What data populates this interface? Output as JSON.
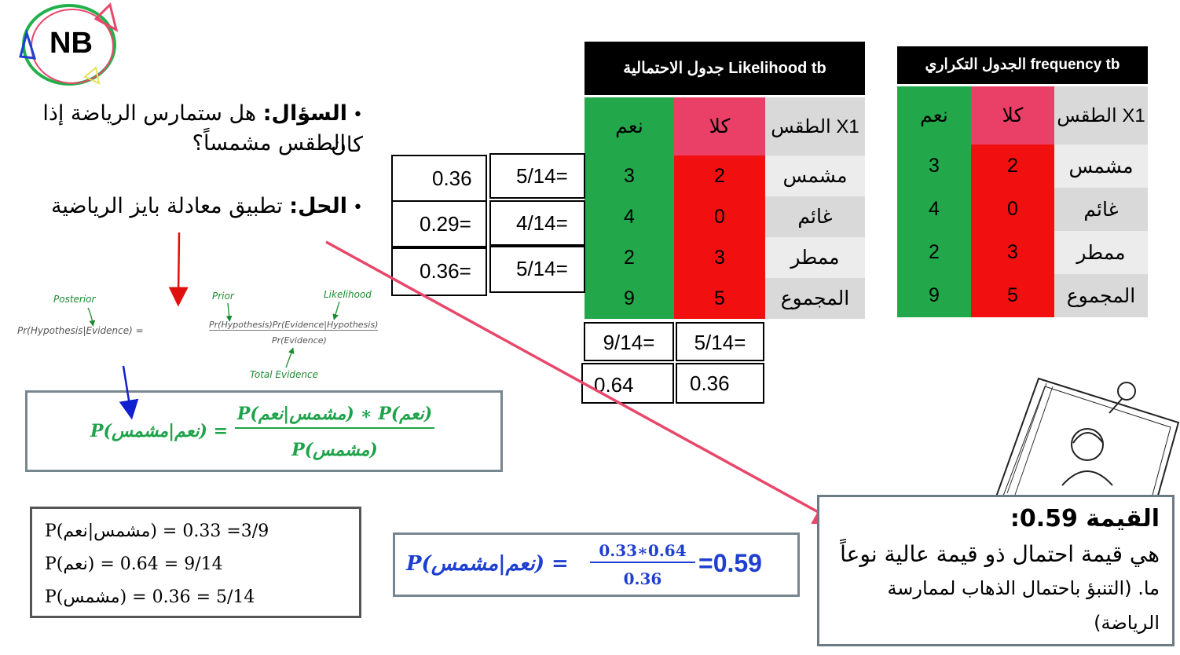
{
  "logo": {
    "text": "NB"
  },
  "question": {
    "label": "السؤال:",
    "text": " هل ستمارس الرياضة إذا كان",
    "line2": "الطقس مشمساً؟"
  },
  "solution": {
    "label": "الحل:",
    "text": " تطبيق معادلة بايز الرياضية"
  },
  "bayes_formula": {
    "posterior": "Posterior",
    "prior": "Prior",
    "likelihood": "Likelihood",
    "total": "Total Evidence",
    "lhs": "Pr(Hypothesis|Evidence) =",
    "num": "Pr(Hypothesis)Pr(Evidence|Hypothesis)",
    "den": "Pr(Evidence)"
  },
  "green_formula": {
    "lhs": "P(نعم|مشمس) =",
    "num": "P(مشمس|نعم) ∗ P(نعم)",
    "den": "P(مشمس)"
  },
  "values_box": {
    "line1": "P(مشمس|نعم) = 3/9= 0.33",
    "line2": "P(نعم) = 9/14 = 0.64",
    "line3": "P(مشمس) = 5/14 = 0.36"
  },
  "result_formula": {
    "lhs": "P(نعم|مشمس) =",
    "num": "0.33∗0.64",
    "den": "0.36",
    "result": "=0.59"
  },
  "note": {
    "title": "القيمة 0.59:",
    "line1": "هي قيمة احتمال ذو قيمة عالية نوعاً",
    "line2": "ما. (التنبؤ باحتمال الذهاب لممارسة",
    "line3": "الرياضة)"
  },
  "likelihood_table": {
    "title": "جدول الاحتمالية  Likelihood  tb",
    "headers": {
      "weather": "الطقس X1",
      "no": "كلا",
      "yes": "نعم"
    },
    "rows": [
      {
        "label": "مشمس",
        "no": "2",
        "yes": "3"
      },
      {
        "label": "غائم",
        "no": "0",
        "yes": "4"
      },
      {
        "label": "ممطر",
        "no": "3",
        "yes": "2"
      },
      {
        "label": "المجموع",
        "no": "5",
        "yes": "9"
      }
    ],
    "bottom_fracs": {
      "yes": "9/14=",
      "no": "5/14="
    },
    "bottom_vals": {
      "yes": "0.64",
      "no": "0.36"
    }
  },
  "side_fracs": [
    "5/14=",
    "4/14=",
    "5/14="
  ],
  "side_vals": [
    "0.36",
    "0.29=",
    "0.36="
  ],
  "frequency_table": {
    "title": "الجدول التكراري frequency tb",
    "headers": {
      "weather": "الطقس X1",
      "no": "كلا",
      "yes": "نعم"
    },
    "rows": [
      {
        "label": "مشمس",
        "no": "2",
        "yes": "3"
      },
      {
        "label": "غائم",
        "no": "0",
        "yes": "4"
      },
      {
        "label": "ممطر",
        "no": "3",
        "yes": "2"
      },
      {
        "label": "المجموع",
        "no": "5",
        "yes": "9"
      }
    ]
  },
  "colors": {
    "green": "#22a84a",
    "red": "#f20f0f",
    "pink": "#ea4068",
    "arrow": "#e8476a",
    "blue": "#1f3fd0",
    "formula_green": "#1ea34a"
  }
}
